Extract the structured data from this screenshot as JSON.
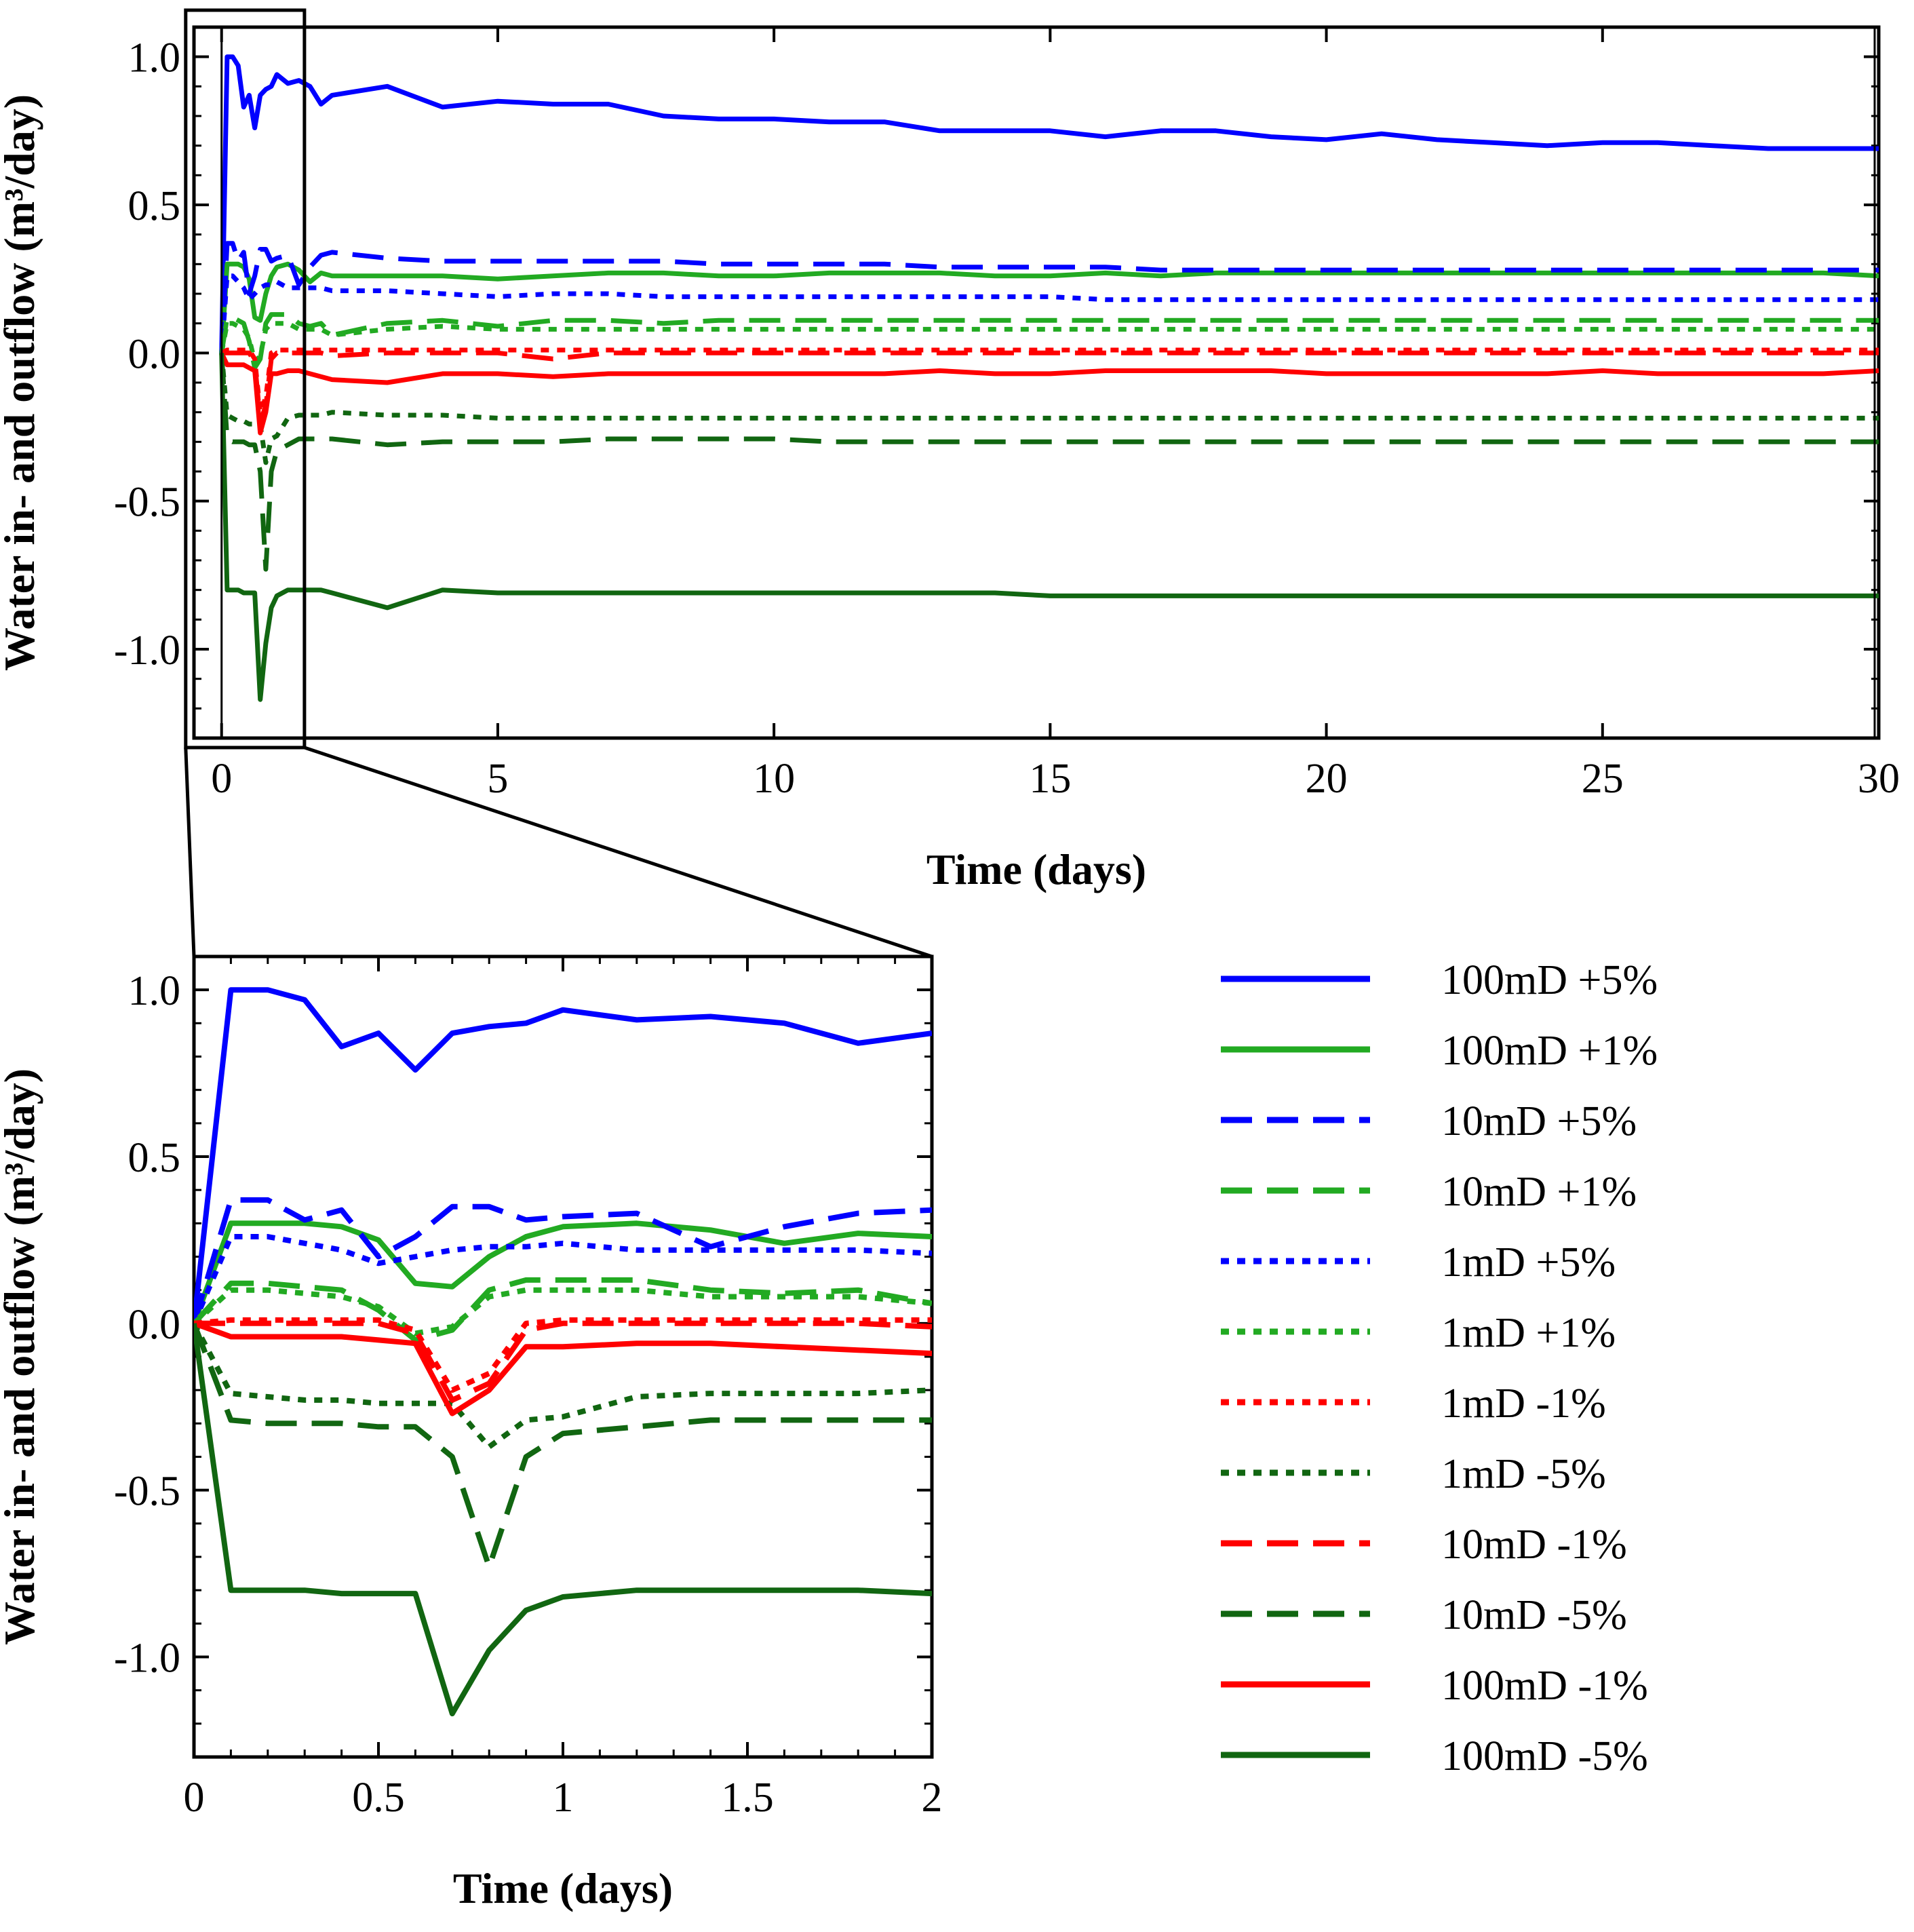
{
  "chart_data": [
    {
      "id": "main",
      "type": "line",
      "title": "",
      "xlabel": "Time (days)",
      "ylabel": "Water in- and outflow (m³/day)",
      "xlim": [
        -0.5,
        30
      ],
      "ylim": [
        -1.3,
        1.1
      ],
      "xticks": [
        0,
        5,
        10,
        15,
        20,
        25,
        30
      ],
      "xtick_labels": [
        "0",
        "5",
        "10",
        "15",
        "20",
        "25",
        "30"
      ],
      "yticks": [
        1.0,
        0.5,
        0.0,
        -0.5,
        -1.0
      ],
      "ytick_labels": [
        "1.0",
        "0.5",
        "0.0",
        "-0.5",
        "-1.0"
      ],
      "grid": false,
      "annotation": "inset rectangle marking the 0–2 day zoom region"
    },
    {
      "id": "zoom",
      "type": "line",
      "title": "",
      "xlabel": "Time (days)",
      "ylabel": "Water in- and outflow (m³/day)",
      "xlim": [
        0,
        2
      ],
      "ylim": [
        -1.3,
        1.1
      ],
      "xticks": [
        0,
        0.5,
        1,
        1.5,
        2
      ],
      "xtick_labels": [
        "0",
        "0.5",
        "1",
        "1.5",
        "2"
      ],
      "yticks": [
        1.0,
        0.5,
        0.0,
        -0.5,
        -1.0
      ],
      "ytick_labels": [
        "1.0",
        "0.5",
        "0.0",
        "-0.5",
        "-1.0"
      ],
      "grid": false
    }
  ],
  "series": [
    {
      "name": "100mD +5%",
      "color": "#0000ff",
      "style": "solid",
      "x": [
        0,
        0.1,
        0.2,
        0.3,
        0.4,
        0.5,
        0.6,
        0.7,
        0.8,
        0.9,
        1.0,
        1.2,
        1.4,
        1.6,
        1.8,
        2,
        3,
        4,
        5,
        6,
        7,
        8,
        9,
        10,
        11,
        12,
        13,
        14,
        15,
        16,
        17,
        18,
        19,
        20,
        21,
        22,
        23,
        24,
        25,
        26,
        27,
        28,
        29,
        30
      ],
      "y": [
        0,
        1.0,
        1.0,
        0.97,
        0.83,
        0.87,
        0.76,
        0.87,
        0.89,
        0.9,
        0.94,
        0.91,
        0.92,
        0.9,
        0.84,
        0.87,
        0.9,
        0.83,
        0.85,
        0.84,
        0.84,
        0.8,
        0.79,
        0.79,
        0.78,
        0.78,
        0.75,
        0.75,
        0.75,
        0.73,
        0.75,
        0.75,
        0.73,
        0.72,
        0.74,
        0.72,
        0.71,
        0.7,
        0.71,
        0.71,
        0.7,
        0.69,
        0.69,
        0.69
      ]
    },
    {
      "name": "100mD +1%",
      "color": "#22aa22",
      "style": "solid",
      "x": [
        0,
        0.1,
        0.2,
        0.3,
        0.4,
        0.5,
        0.6,
        0.7,
        0.8,
        0.9,
        1.0,
        1.2,
        1.4,
        1.6,
        1.8,
        2,
        3,
        4,
        5,
        6,
        7,
        8,
        9,
        10,
        11,
        12,
        13,
        14,
        15,
        16,
        17,
        18,
        19,
        20,
        21,
        22,
        23,
        24,
        25,
        26,
        27,
        28,
        29,
        30
      ],
      "y": [
        0,
        0.3,
        0.3,
        0.3,
        0.29,
        0.25,
        0.12,
        0.11,
        0.2,
        0.26,
        0.29,
        0.3,
        0.28,
        0.24,
        0.27,
        0.26,
        0.26,
        0.26,
        0.25,
        0.26,
        0.27,
        0.27,
        0.26,
        0.26,
        0.27,
        0.27,
        0.27,
        0.26,
        0.26,
        0.27,
        0.26,
        0.27,
        0.27,
        0.27,
        0.27,
        0.27,
        0.27,
        0.27,
        0.27,
        0.27,
        0.27,
        0.27,
        0.27,
        0.26
      ]
    },
    {
      "name": "10mD +5%",
      "color": "#0000ff",
      "style": "dashed",
      "x": [
        0,
        0.1,
        0.2,
        0.3,
        0.4,
        0.5,
        0.6,
        0.7,
        0.8,
        0.9,
        1.0,
        1.2,
        1.4,
        1.6,
        1.8,
        2,
        3,
        4,
        5,
        6,
        7,
        8,
        9,
        10,
        11,
        12,
        13,
        14,
        15,
        16,
        17,
        18,
        19,
        20,
        21,
        22,
        23,
        24,
        25,
        26,
        27,
        28,
        29,
        30
      ],
      "y": [
        0,
        0.37,
        0.37,
        0.31,
        0.34,
        0.2,
        0.26,
        0.35,
        0.35,
        0.31,
        0.32,
        0.33,
        0.23,
        0.29,
        0.33,
        0.34,
        0.32,
        0.31,
        0.31,
        0.31,
        0.31,
        0.31,
        0.3,
        0.3,
        0.3,
        0.3,
        0.29,
        0.29,
        0.29,
        0.29,
        0.28,
        0.28,
        0.28,
        0.28,
        0.28,
        0.28,
        0.28,
        0.28,
        0.28,
        0.28,
        0.28,
        0.28,
        0.28,
        0.28
      ]
    },
    {
      "name": "10mD +1%",
      "color": "#22aa22",
      "style": "dashed",
      "x": [
        0,
        0.1,
        0.2,
        0.3,
        0.4,
        0.5,
        0.6,
        0.7,
        0.8,
        0.9,
        1.0,
        1.2,
        1.4,
        1.6,
        1.8,
        2,
        3,
        4,
        5,
        6,
        7,
        8,
        9,
        10,
        11,
        12,
        13,
        14,
        15,
        16,
        17,
        18,
        19,
        20,
        21,
        22,
        23,
        24,
        25,
        26,
        27,
        28,
        29,
        30
      ],
      "y": [
        0,
        0.12,
        0.12,
        0.11,
        0.1,
        0.04,
        -0.05,
        -0.02,
        0.1,
        0.13,
        0.13,
        0.13,
        0.1,
        0.09,
        0.1,
        0.06,
        0.1,
        0.11,
        0.09,
        0.11,
        0.11,
        0.1,
        0.11,
        0.11,
        0.11,
        0.11,
        0.11,
        0.11,
        0.11,
        0.11,
        0.11,
        0.11,
        0.11,
        0.11,
        0.11,
        0.11,
        0.11,
        0.11,
        0.11,
        0.11,
        0.11,
        0.11,
        0.11,
        0.11
      ]
    },
    {
      "name": "1mD +5%",
      "color": "#0000ff",
      "style": "dotted",
      "x": [
        0,
        0.1,
        0.2,
        0.3,
        0.4,
        0.5,
        0.6,
        0.7,
        0.8,
        0.9,
        1.0,
        1.2,
        1.4,
        1.6,
        1.8,
        2,
        3,
        4,
        5,
        6,
        7,
        8,
        9,
        10,
        11,
        12,
        13,
        14,
        15,
        16,
        17,
        18,
        19,
        20,
        21,
        22,
        23,
        24,
        25,
        26,
        27,
        28,
        29,
        30
      ],
      "y": [
        0,
        0.26,
        0.26,
        0.24,
        0.22,
        0.18,
        0.2,
        0.22,
        0.23,
        0.23,
        0.24,
        0.22,
        0.22,
        0.22,
        0.22,
        0.21,
        0.21,
        0.2,
        0.19,
        0.2,
        0.2,
        0.19,
        0.19,
        0.19,
        0.19,
        0.19,
        0.19,
        0.19,
        0.19,
        0.18,
        0.18,
        0.18,
        0.18,
        0.18,
        0.18,
        0.18,
        0.18,
        0.18,
        0.18,
        0.18,
        0.18,
        0.18,
        0.18,
        0.18
      ]
    },
    {
      "name": "1mD +1%",
      "color": "#22aa22",
      "style": "dotted",
      "x": [
        0,
        0.1,
        0.2,
        0.3,
        0.4,
        0.5,
        0.6,
        0.7,
        0.8,
        0.9,
        1.0,
        1.2,
        1.4,
        1.6,
        1.8,
        2,
        3,
        4,
        5,
        6,
        7,
        8,
        9,
        10,
        11,
        12,
        13,
        14,
        15,
        16,
        17,
        18,
        19,
        20,
        21,
        22,
        23,
        24,
        25,
        26,
        27,
        28,
        29,
        30
      ],
      "y": [
        0,
        0.1,
        0.1,
        0.09,
        0.08,
        0.05,
        -0.03,
        -0.01,
        0.08,
        0.1,
        0.1,
        0.1,
        0.08,
        0.08,
        0.08,
        0.06,
        0.08,
        0.09,
        0.08,
        0.08,
        0.08,
        0.08,
        0.08,
        0.08,
        0.08,
        0.08,
        0.08,
        0.08,
        0.08,
        0.08,
        0.08,
        0.08,
        0.08,
        0.08,
        0.08,
        0.08,
        0.08,
        0.08,
        0.08,
        0.08,
        0.08,
        0.08,
        0.08,
        0.08
      ]
    },
    {
      "name": "1mD -1%",
      "color": "#ff0000",
      "style": "dotted",
      "x": [
        0,
        0.1,
        0.2,
        0.3,
        0.4,
        0.5,
        0.6,
        0.7,
        0.8,
        0.9,
        1.0,
        1.2,
        1.4,
        1.6,
        1.8,
        2,
        3,
        4,
        5,
        6,
        7,
        8,
        9,
        10,
        11,
        12,
        13,
        14,
        15,
        16,
        17,
        18,
        19,
        20,
        21,
        22,
        23,
        24,
        25,
        26,
        27,
        28,
        29,
        30
      ],
      "y": [
        0,
        0.01,
        0.01,
        0.01,
        0.01,
        0.01,
        -0.02,
        -0.2,
        -0.15,
        0.0,
        0.01,
        0.01,
        0.01,
        0.01,
        0.01,
        0.01,
        0.01,
        0.01,
        0.01,
        0.01,
        0.01,
        0.01,
        0.01,
        0.01,
        0.01,
        0.01,
        0.01,
        0.01,
        0.01,
        0.01,
        0.01,
        0.01,
        0.01,
        0.01,
        0.01,
        0.01,
        0.01,
        0.01,
        0.01,
        0.01,
        0.01,
        0.01,
        0.01,
        0.01
      ]
    },
    {
      "name": "1mD -5%",
      "color": "#116611",
      "style": "dotted",
      "x": [
        0,
        0.1,
        0.2,
        0.3,
        0.4,
        0.5,
        0.6,
        0.7,
        0.8,
        0.9,
        1.0,
        1.2,
        1.4,
        1.6,
        1.8,
        2,
        3,
        4,
        5,
        6,
        7,
        8,
        9,
        10,
        11,
        12,
        13,
        14,
        15,
        16,
        17,
        18,
        19,
        20,
        21,
        22,
        23,
        24,
        25,
        26,
        27,
        28,
        29,
        30
      ],
      "y": [
        0,
        -0.21,
        -0.22,
        -0.23,
        -0.23,
        -0.24,
        -0.24,
        -0.24,
        -0.37,
        -0.29,
        -0.28,
        -0.22,
        -0.21,
        -0.21,
        -0.21,
        -0.2,
        -0.21,
        -0.21,
        -0.22,
        -0.22,
        -0.22,
        -0.22,
        -0.22,
        -0.22,
        -0.22,
        -0.22,
        -0.22,
        -0.22,
        -0.22,
        -0.22,
        -0.22,
        -0.22,
        -0.22,
        -0.22,
        -0.22,
        -0.22,
        -0.22,
        -0.22,
        -0.22,
        -0.22,
        -0.22,
        -0.22,
        -0.22,
        -0.22
      ]
    },
    {
      "name": "10mD -1%",
      "color": "#ff0000",
      "style": "dashed",
      "x": [
        0,
        0.1,
        0.2,
        0.3,
        0.4,
        0.5,
        0.6,
        0.7,
        0.8,
        0.9,
        1.0,
        1.2,
        1.4,
        1.6,
        1.8,
        2,
        3,
        4,
        5,
        6,
        7,
        8,
        9,
        10,
        11,
        12,
        13,
        14,
        15,
        16,
        17,
        18,
        19,
        20,
        21,
        22,
        23,
        24,
        25,
        26,
        27,
        28,
        29,
        30
      ],
      "y": [
        0,
        0.0,
        0.0,
        0.0,
        0.0,
        0.0,
        -0.03,
        -0.23,
        -0.18,
        -0.02,
        0.0,
        0.0,
        0.0,
        0.0,
        0.0,
        -0.01,
        0.0,
        0.0,
        0.0,
        -0.02,
        0.0,
        0.0,
        0.0,
        0.0,
        0.0,
        0.0,
        0.0,
        0.0,
        0.0,
        0.0,
        0.0,
        0.0,
        0.0,
        0.0,
        0.0,
        0.0,
        0.0,
        0.0,
        0.0,
        0.0,
        0.0,
        0.0,
        0.0,
        0.0
      ]
    },
    {
      "name": "10mD -5%",
      "color": "#116611",
      "style": "dashed",
      "x": [
        0,
        0.1,
        0.2,
        0.3,
        0.4,
        0.5,
        0.6,
        0.7,
        0.8,
        0.9,
        1.0,
        1.2,
        1.4,
        1.6,
        1.8,
        2,
        3,
        4,
        5,
        6,
        7,
        8,
        9,
        10,
        11,
        12,
        13,
        14,
        15,
        16,
        17,
        18,
        19,
        20,
        21,
        22,
        23,
        24,
        25,
        26,
        27,
        28,
        29,
        30
      ],
      "y": [
        0,
        -0.29,
        -0.3,
        -0.3,
        -0.3,
        -0.31,
        -0.31,
        -0.4,
        -0.73,
        -0.4,
        -0.33,
        -0.31,
        -0.29,
        -0.29,
        -0.29,
        -0.29,
        -0.31,
        -0.3,
        -0.3,
        -0.3,
        -0.29,
        -0.29,
        -0.29,
        -0.29,
        -0.3,
        -0.3,
        -0.3,
        -0.3,
        -0.3,
        -0.3,
        -0.3,
        -0.3,
        -0.3,
        -0.3,
        -0.3,
        -0.3,
        -0.3,
        -0.3,
        -0.3,
        -0.3,
        -0.3,
        -0.3,
        -0.3,
        -0.3
      ]
    },
    {
      "name": "100mD -1%",
      "color": "#ff0000",
      "style": "solid",
      "x": [
        0,
        0.1,
        0.2,
        0.3,
        0.4,
        0.5,
        0.6,
        0.7,
        0.8,
        0.9,
        1.0,
        1.2,
        1.4,
        1.6,
        1.8,
        2,
        3,
        4,
        5,
        6,
        7,
        8,
        9,
        10,
        11,
        12,
        13,
        14,
        15,
        16,
        17,
        18,
        19,
        20,
        21,
        22,
        23,
        24,
        25,
        26,
        27,
        28,
        29,
        30
      ],
      "y": [
        0,
        -0.04,
        -0.04,
        -0.04,
        -0.04,
        -0.05,
        -0.06,
        -0.27,
        -0.2,
        -0.07,
        -0.07,
        -0.06,
        -0.06,
        -0.07,
        -0.08,
        -0.09,
        -0.1,
        -0.07,
        -0.07,
        -0.08,
        -0.07,
        -0.07,
        -0.07,
        -0.07,
        -0.07,
        -0.07,
        -0.06,
        -0.07,
        -0.07,
        -0.06,
        -0.06,
        -0.06,
        -0.06,
        -0.07,
        -0.07,
        -0.07,
        -0.07,
        -0.07,
        -0.06,
        -0.07,
        -0.07,
        -0.07,
        -0.07,
        -0.06
      ]
    },
    {
      "name": "100mD -5%",
      "color": "#116611",
      "style": "solid",
      "x": [
        0,
        0.1,
        0.2,
        0.3,
        0.4,
        0.5,
        0.6,
        0.7,
        0.8,
        0.9,
        1.0,
        1.2,
        1.4,
        1.6,
        1.8,
        2,
        3,
        4,
        5,
        6,
        7,
        8,
        9,
        10,
        11,
        12,
        13,
        14,
        15,
        16,
        17,
        18,
        19,
        20,
        21,
        22,
        23,
        24,
        25,
        26,
        27,
        28,
        29,
        30
      ],
      "y": [
        0,
        -0.8,
        -0.8,
        -0.8,
        -0.81,
        -0.81,
        -0.81,
        -1.17,
        -0.98,
        -0.86,
        -0.82,
        -0.8,
        -0.8,
        -0.8,
        -0.8,
        -0.81,
        -0.86,
        -0.8,
        -0.81,
        -0.81,
        -0.81,
        -0.81,
        -0.81,
        -0.81,
        -0.81,
        -0.81,
        -0.81,
        -0.81,
        -0.82,
        -0.82,
        -0.82,
        -0.82,
        -0.82,
        -0.82,
        -0.82,
        -0.82,
        -0.82,
        -0.82,
        -0.82,
        -0.82,
        -0.82,
        -0.82,
        -0.82,
        -0.82
      ]
    }
  ]
}
